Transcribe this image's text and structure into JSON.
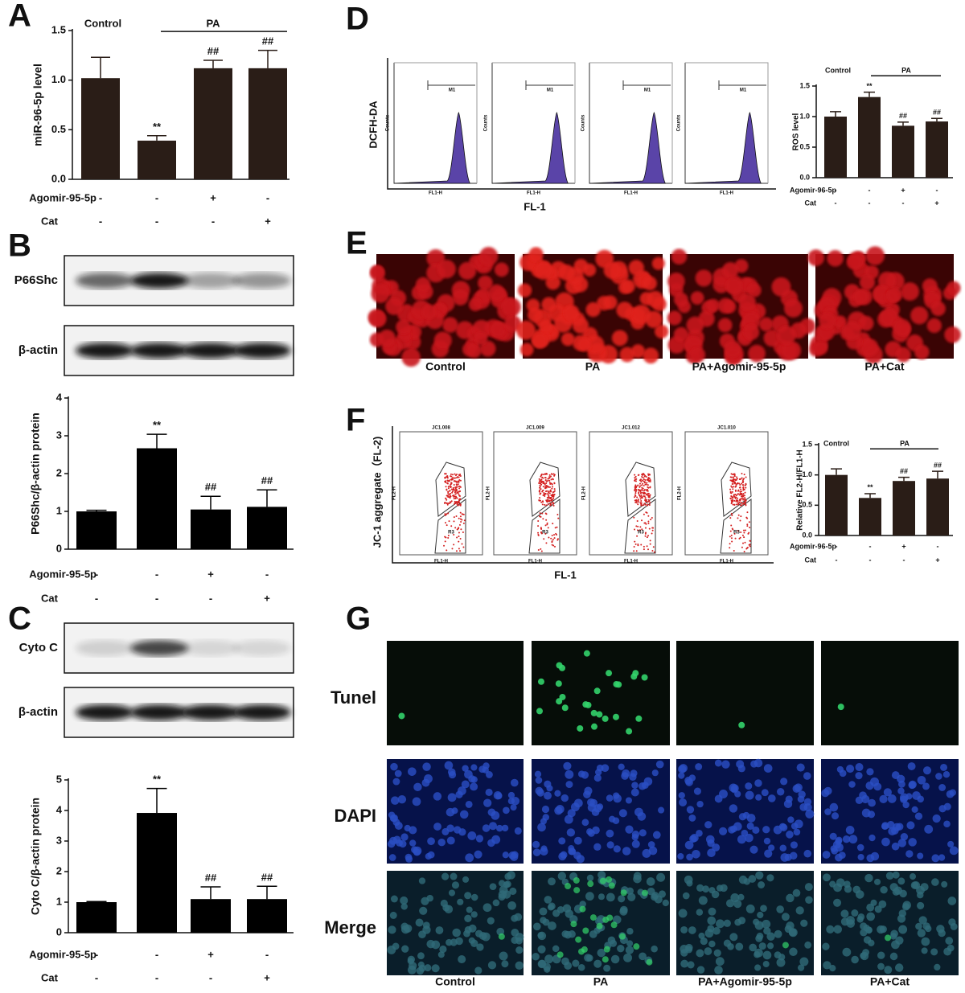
{
  "panel_letters": [
    "A",
    "B",
    "C",
    "D",
    "E",
    "F",
    "G"
  ],
  "chart_data": [
    {
      "type": "bar",
      "ylabel": "miR-96-5p level",
      "color": "#2a1d17",
      "values": [
        1.02,
        0.39,
        1.12,
        1.12
      ],
      "errors": [
        0.21,
        0.05,
        0.08,
        0.18
      ],
      "annotations": [
        null,
        "**",
        "##",
        "##"
      ],
      "group_labels": [
        "Control",
        "PA"
      ],
      "rows": [
        {
          "label": "Agomir-95-5p",
          "signs": [
            "-",
            "-",
            "+",
            "-"
          ]
        },
        {
          "label": "Cat",
          "signs": [
            "-",
            "-",
            "-",
            "+"
          ]
        }
      ],
      "ylim": [
        0,
        1.5
      ],
      "yticks": [
        {
          "value": 0,
          "label": "0.0"
        },
        {
          "value": 0.5,
          "label": "0.5"
        },
        {
          "value": 1,
          "label": "1.0"
        },
        {
          "value": 1.5,
          "label": "1.5"
        }
      ]
    },
    {
      "type": "bar",
      "ylabel": "P66Shc/β-actin protein",
      "color": "#000000",
      "values": [
        1.0,
        2.67,
        1.05,
        1.12
      ],
      "errors": [
        0.03,
        0.37,
        0.35,
        0.45
      ],
      "annotations": [
        null,
        "**",
        "##",
        "##"
      ],
      "rows": [
        {
          "label": "Agomir-95-5p",
          "signs": [
            "-",
            "-",
            "+",
            "-"
          ]
        },
        {
          "label": "Cat",
          "signs": [
            "-",
            "-",
            "-",
            "+"
          ]
        }
      ],
      "ylim": [
        0,
        4
      ],
      "yticks": [
        0,
        1,
        2,
        3,
        4
      ]
    },
    {
      "type": "bar",
      "ylabel": "Cyto C/β-actin protein",
      "color": "#000000",
      "values": [
        1.0,
        3.92,
        1.1,
        1.1
      ],
      "errors": [
        0.02,
        0.8,
        0.4,
        0.42
      ],
      "annotations": [
        null,
        "**",
        "##",
        "##"
      ],
      "rows": [
        {
          "label": "Agomir-95-5p",
          "signs": [
            "-",
            "-",
            "+",
            "-"
          ]
        },
        {
          "label": "Cat",
          "signs": [
            "-",
            "-",
            "-",
            "+"
          ]
        }
      ],
      "ylim": [
        0,
        5
      ],
      "yticks": [
        0,
        1,
        2,
        3,
        4,
        5
      ]
    },
    {
      "type": "bar",
      "ylabel": "ROS level",
      "color": "#2a1d17",
      "values": [
        1.0,
        1.32,
        0.85,
        0.92
      ],
      "errors": [
        0.08,
        0.08,
        0.06,
        0.05
      ],
      "annotations": [
        null,
        "**",
        "##",
        "##"
      ],
      "group_labels": [
        "Control",
        "PA"
      ],
      "rows": [
        {
          "label": "Agomir-96-5p",
          "signs": [
            "-",
            "-",
            "+",
            "-"
          ]
        },
        {
          "label": "Cat",
          "signs": [
            "-",
            "-",
            "-",
            "+"
          ]
        }
      ],
      "ylim": [
        0,
        1.5
      ],
      "yticks": [
        {
          "value": 0,
          "label": "0.0"
        },
        {
          "value": 0.5,
          "label": "0.5"
        },
        {
          "value": 1,
          "label": "1.0"
        },
        {
          "value": 1.5,
          "label": "1.5"
        }
      ]
    },
    {
      "type": "bar",
      "ylabel": "Relative FL2-H/FL1-H",
      "color": "#2a1d17",
      "values": [
        1.0,
        0.62,
        0.9,
        0.94
      ],
      "errors": [
        0.1,
        0.07,
        0.06,
        0.12
      ],
      "annotations": [
        null,
        "**",
        "##",
        "##"
      ],
      "group_labels": [
        "Control",
        "PA"
      ],
      "rows": [
        {
          "label": "Agomir-96-5p",
          "signs": [
            "-",
            "-",
            "+",
            "-"
          ]
        },
        {
          "label": "Cat",
          "signs": [
            "-",
            "-",
            "-",
            "+"
          ]
        }
      ],
      "ylim": [
        0,
        1.5
      ],
      "yticks": [
        {
          "value": 0,
          "label": "0.0"
        },
        {
          "value": 0.5,
          "label": "0.5"
        },
        {
          "value": 1,
          "label": "1.0"
        },
        {
          "value": 1.5,
          "label": "1.5"
        }
      ]
    }
  ],
  "blots": {
    "b": [
      "P66Shc",
      "β-actin"
    ],
    "c": [
      "Cyto C",
      "β-actin"
    ]
  },
  "flow_d": {
    "ylabel": "DCFH-DA",
    "xlabel": "FL-1",
    "gate": "M1",
    "axis_y": "Counts",
    "axis_x": "FL1-H"
  },
  "flow_f": {
    "ylabel": "JC-1 aggregate（FL-2)",
    "xlabel": "FL-1",
    "titles": [
      "JC1.008",
      "JC1.009",
      "JC1.012",
      "JC1.010"
    ],
    "gate": "R3",
    "axis_y": "FL2-H",
    "axis_x": "FL1-H"
  },
  "images_e": [
    "Control",
    "PA",
    "PA+Agomir-95-5p",
    "PA+Cat"
  ],
  "images_g": {
    "rows": [
      "Tunel",
      "DAPI",
      "Merge"
    ],
    "columns": [
      "Control",
      "PA",
      "PA+Agomir-95-5p",
      "PA+Cat"
    ]
  }
}
